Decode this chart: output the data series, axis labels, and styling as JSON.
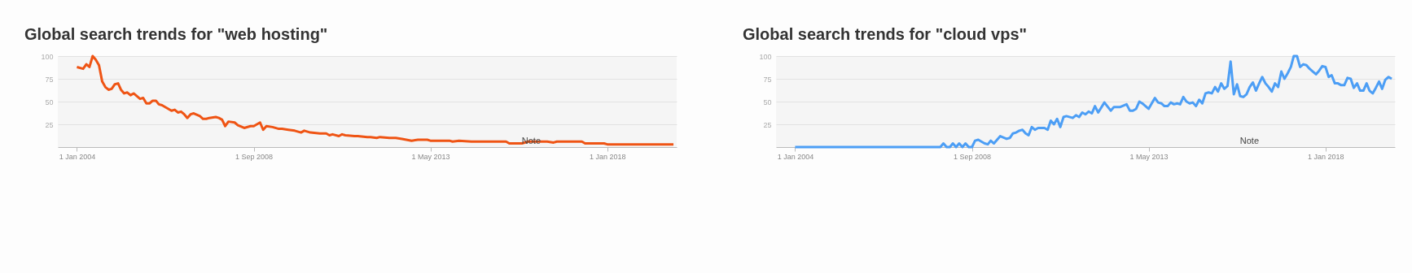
{
  "chart_data": [
    {
      "type": "line",
      "title": "Global search trends for \"web hosting\"",
      "color": "#ef5414",
      "grid": "y",
      "xlim": [
        "2003-07",
        "2019-11"
      ],
      "xticks": [
        {
          "value": "2004-01-01",
          "label": "1 Jan 2004"
        },
        {
          "value": "2008-09-01",
          "label": "1 Sep 2008"
        },
        {
          "value": "2013-05-01",
          "label": "1 May 2013"
        },
        {
          "value": "2018-01-01",
          "label": "1 Jan 2018"
        }
      ],
      "ylim": [
        0,
        100
      ],
      "yticks": [
        25,
        50,
        75,
        100
      ],
      "annotations": [
        "Note"
      ],
      "x": [
        "2004-01",
        "2004-03",
        "2004-04",
        "2004-05",
        "2004-06",
        "2004-07",
        "2004-08",
        "2004-09",
        "2004-10",
        "2004-11",
        "2004-12",
        "2005-01",
        "2005-02",
        "2005-03",
        "2005-04",
        "2005-05",
        "2005-06",
        "2005-07",
        "2005-09",
        "2005-10",
        "2005-11",
        "2005-12",
        "2006-01",
        "2006-02",
        "2006-03",
        "2006-04",
        "2006-05",
        "2006-07",
        "2006-08",
        "2006-09",
        "2006-10",
        "2006-11",
        "2006-12",
        "2007-01",
        "2007-02",
        "2007-04",
        "2007-05",
        "2007-06",
        "2007-07",
        "2007-09",
        "2007-10",
        "2007-11",
        "2007-12",
        "2008-01",
        "2008-03",
        "2008-04",
        "2008-06",
        "2008-08",
        "2008-09",
        "2008-11",
        "2008-12",
        "2009-01",
        "2009-03",
        "2009-05",
        "2009-06",
        "2009-08",
        "2009-10",
        "2009-12",
        "2010-01",
        "2010-03",
        "2010-06",
        "2010-08",
        "2010-09",
        "2010-10",
        "2010-12",
        "2011-01",
        "2011-02",
        "2011-05",
        "2011-06",
        "2011-09",
        "2011-10",
        "2011-12",
        "2012-01",
        "2012-04",
        "2012-06",
        "2012-08",
        "2012-11",
        "2013-01",
        "2013-04",
        "2013-05",
        "2013-11",
        "2013-12",
        "2014-02",
        "2014-06",
        "2015-05",
        "2015-06",
        "2015-10",
        "2015-12",
        "2016-06",
        "2016-08",
        "2016-09",
        "2017-05",
        "2017-06",
        "2017-12",
        "2018-01",
        "2019-10"
      ],
      "values": [
        88,
        86,
        91,
        88,
        100,
        96,
        90,
        72,
        66,
        63,
        64,
        69,
        70,
        63,
        59,
        60,
        57,
        59,
        53,
        54,
        48,
        48,
        51,
        51,
        47,
        46,
        44,
        40,
        41,
        38,
        39,
        36,
        32,
        36,
        37,
        34,
        31,
        31,
        32,
        33,
        32,
        30,
        23,
        28,
        27,
        24,
        21,
        23,
        23,
        27,
        19,
        23,
        22,
        20,
        20,
        19,
        18,
        16,
        18,
        16,
        15,
        15,
        13,
        14,
        12,
        14,
        13,
        12,
        12,
        11,
        11,
        10,
        11,
        10,
        10,
        9,
        7,
        8,
        8,
        7,
        7,
        6,
        7,
        6,
        6,
        4,
        4,
        6,
        6,
        5,
        6,
        6,
        4,
        4,
        3,
        3
      ]
    },
    {
      "type": "line",
      "title": "Global search trends for \"cloud vps\"",
      "color": "#4c9ef5",
      "grid": "y",
      "xlim": [
        "2003-07",
        "2019-11"
      ],
      "xticks": [
        {
          "value": "2004-01-01",
          "label": "1 Jan 2004"
        },
        {
          "value": "2008-09-01",
          "label": "1 Sep 2008"
        },
        {
          "value": "2013-05-01",
          "label": "1 May 2013"
        },
        {
          "value": "2018-01-01",
          "label": "1 Jan 2018"
        }
      ],
      "ylim": [
        0,
        100
      ],
      "yticks": [
        25,
        50,
        75,
        100
      ],
      "annotations": [
        "Note"
      ],
      "x": [
        "2004-01",
        "2007-11",
        "2007-12",
        "2008-01",
        "2008-02",
        "2008-03",
        "2008-04",
        "2008-05",
        "2008-06",
        "2008-07",
        "2008-08",
        "2008-09",
        "2008-10",
        "2008-11",
        "2008-12",
        "2009-01",
        "2009-02",
        "2009-03",
        "2009-04",
        "2009-06",
        "2009-08",
        "2009-09",
        "2009-10",
        "2009-11",
        "2009-12",
        "2010-01",
        "2010-02",
        "2010-03",
        "2010-04",
        "2010-05",
        "2010-06",
        "2010-08",
        "2010-09",
        "2010-10",
        "2010-11",
        "2010-12",
        "2011-01",
        "2011-02",
        "2011-03",
        "2011-05",
        "2011-06",
        "2011-07",
        "2011-08",
        "2011-09",
        "2011-10",
        "2011-11",
        "2011-12",
        "2012-01",
        "2012-03",
        "2012-05",
        "2012-06",
        "2012-08",
        "2012-10",
        "2012-11",
        "2012-12",
        "2013-01",
        "2013-02",
        "2013-03",
        "2013-05",
        "2013-07",
        "2013-08",
        "2013-09",
        "2013-10",
        "2013-11",
        "2013-12",
        "2014-01",
        "2014-02",
        "2014-03",
        "2014-04",
        "2014-05",
        "2014-06",
        "2014-07",
        "2014-08",
        "2014-09",
        "2014-10",
        "2014-11",
        "2014-12",
        "2015-01",
        "2015-02",
        "2015-03",
        "2015-04",
        "2015-05",
        "2015-06",
        "2015-07",
        "2015-08",
        "2015-09",
        "2015-10",
        "2015-11",
        "2015-12",
        "2016-01",
        "2016-02",
        "2016-03",
        "2016-04",
        "2016-05",
        "2016-06",
        "2016-07",
        "2016-08",
        "2016-09",
        "2016-10",
        "2016-11",
        "2016-12",
        "2017-01",
        "2017-02",
        "2017-03",
        "2017-04",
        "2017-05",
        "2017-06",
        "2017-07",
        "2017-08",
        "2017-09",
        "2017-10",
        "2017-11",
        "2017-12",
        "2018-01",
        "2018-02",
        "2018-03",
        "2018-04",
        "2018-05",
        "2018-06",
        "2018-07",
        "2018-08",
        "2018-09",
        "2018-10",
        "2018-11",
        "2018-12",
        "2019-01",
        "2019-02",
        "2019-03",
        "2019-04",
        "2019-05",
        "2019-06",
        "2019-07",
        "2019-08",
        "2019-09",
        "2019-10"
      ],
      "values": [
        0,
        0,
        4,
        0,
        0,
        4,
        0,
        4,
        0,
        4,
        0,
        0,
        7,
        8,
        6,
        4,
        3,
        7,
        4,
        12,
        9,
        10,
        15,
        16,
        18,
        19,
        15,
        13,
        22,
        19,
        21,
        21,
        19,
        29,
        25,
        31,
        22,
        33,
        34,
        32,
        35,
        33,
        38,
        36,
        39,
        37,
        45,
        38,
        49,
        40,
        44,
        44,
        47,
        40,
        40,
        42,
        50,
        48,
        42,
        54,
        49,
        48,
        45,
        45,
        49,
        47,
        48,
        47,
        55,
        50,
        48,
        49,
        45,
        52,
        48,
        59,
        60,
        59,
        66,
        61,
        70,
        64,
        67,
        94,
        58,
        69,
        56,
        55,
        58,
        66,
        71,
        62,
        70,
        77,
        70,
        66,
        61,
        70,
        66,
        83,
        75,
        81,
        88,
        100,
        100,
        88,
        91,
        90,
        86,
        83,
        80,
        84,
        89,
        88,
        77,
        79,
        70,
        70,
        68,
        68,
        76,
        75,
        65,
        70,
        62,
        62,
        70,
        62,
        59,
        65,
        72,
        64,
        74,
        77,
        75
      ]
    }
  ]
}
